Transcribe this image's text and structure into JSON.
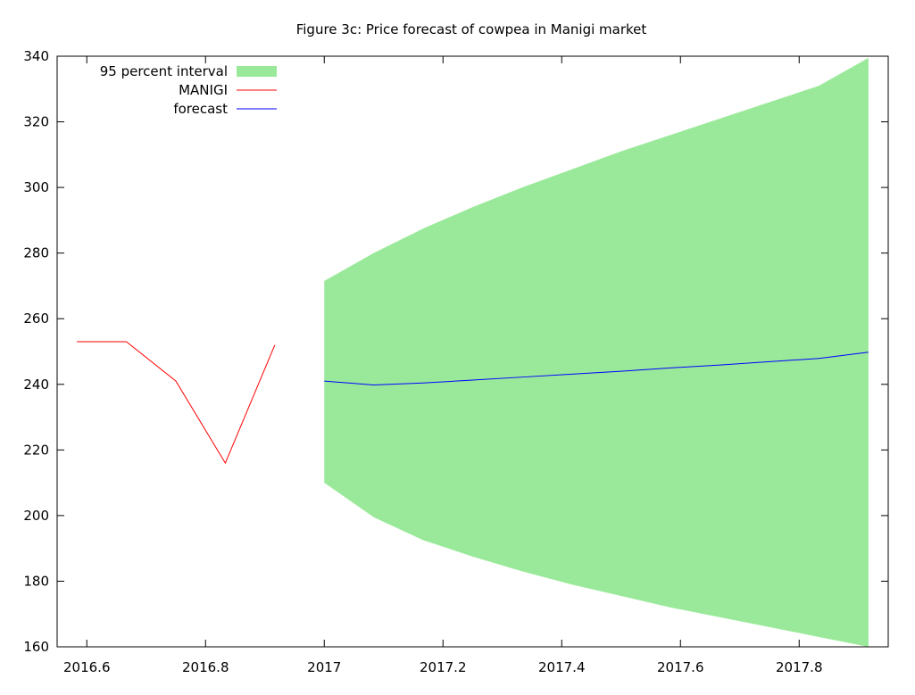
{
  "chart_data": {
    "type": "line",
    "title": "Figure 3c: Price forecast of cowpea in Manigi market",
    "xlabel": "",
    "ylabel": "",
    "xlim": [
      2016.55,
      2017.95
    ],
    "ylim": [
      160,
      340
    ],
    "x_ticks": [
      2016.6,
      2016.8,
      2017,
      2017.2,
      2017.4,
      2017.6,
      2017.8
    ],
    "x_tick_labels": [
      "2016.6",
      "2016.8",
      "2017",
      "2017.2",
      "2017.4",
      "2017.6",
      "2017.8"
    ],
    "y_ticks": [
      160,
      180,
      200,
      220,
      240,
      260,
      280,
      300,
      320,
      340
    ],
    "y_tick_labels": [
      "160",
      "180",
      "200",
      "220",
      "240",
      "260",
      "280",
      "300",
      "320",
      "340"
    ],
    "grid": false,
    "legend_position": "top-left",
    "legend": [
      "95 percent interval",
      "MANIGI",
      "forecast"
    ],
    "series": [
      {
        "name": "MANIGI",
        "kind": "line",
        "color": "#ff0000",
        "x": [
          2016.5833,
          2016.6667,
          2016.75,
          2016.8333,
          2016.9167
        ],
        "y": [
          253,
          253,
          241,
          216,
          252
        ]
      },
      {
        "name": "forecast",
        "kind": "line",
        "color": "#0000ff",
        "x": [
          2017.0,
          2017.0833,
          2017.1667,
          2017.25,
          2017.3333,
          2017.4167,
          2017.5,
          2017.5833,
          2017.6667,
          2017.75,
          2017.8333,
          2017.9167
        ],
        "y": [
          241,
          239.8,
          240.4,
          241.3,
          242.2,
          243.1,
          244.0,
          245.0,
          245.9,
          246.9,
          247.9,
          249.8
        ]
      },
      {
        "name": "95 percent interval",
        "kind": "band",
        "color": "#9ae99a",
        "x": [
          2017.0,
          2017.0833,
          2017.1667,
          2017.25,
          2017.3333,
          2017.4167,
          2017.5,
          2017.5833,
          2017.6667,
          2017.75,
          2017.8333,
          2017.9167
        ],
        "lower": [
          210,
          199.5,
          192.5,
          187.5,
          183.0,
          179.0,
          175.5,
          172.0,
          169.0,
          166.0,
          163.0,
          160.0
        ],
        "upper": [
          271.5,
          280,
          287.5,
          294,
          300,
          305.5,
          311,
          316,
          321,
          326,
          331,
          339.5
        ]
      }
    ]
  }
}
